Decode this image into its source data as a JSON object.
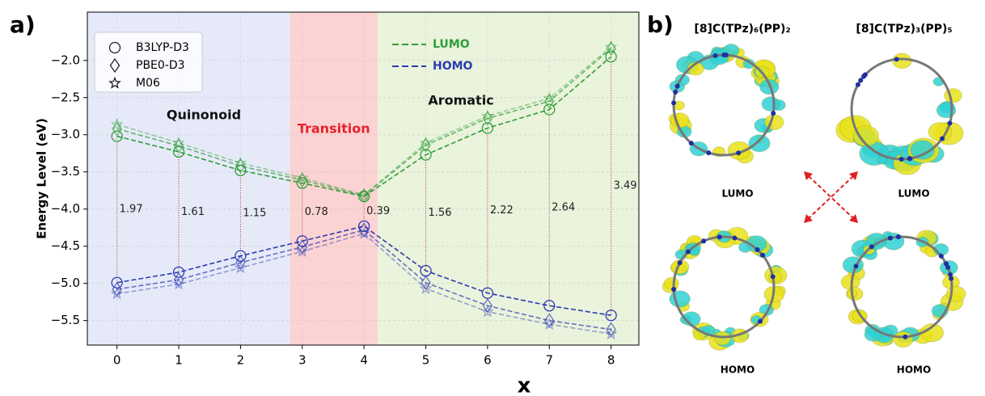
{
  "panel_labels": [
    "a)",
    "b)"
  ],
  "chart_data": {
    "type": "line",
    "x_label": "x",
    "y_label": "Energy Level (eV)",
    "x": [
      0,
      1,
      2,
      3,
      4,
      5,
      6,
      7,
      8
    ],
    "xlim": [
      -0.48,
      8.45
    ],
    "ylim": [
      -5.83,
      -1.35
    ],
    "xticks": [
      0,
      1,
      2,
      3,
      4,
      5,
      6,
      7,
      8
    ],
    "yticks": [
      {
        "value": -5.5,
        "label": "−5.5"
      },
      {
        "value": -5.0,
        "label": "−5.0"
      },
      {
        "value": -4.5,
        "label": "−4.5"
      },
      {
        "value": -4.0,
        "label": "−4.0"
      },
      {
        "value": -3.5,
        "label": "−3.5"
      },
      {
        "value": -3.0,
        "label": "−3.0"
      },
      {
        "value": -2.5,
        "label": "−2.5"
      },
      {
        "value": -2.0,
        "label": "−2.0"
      }
    ],
    "grid": true,
    "regions": [
      {
        "label": "Quinonoid",
        "range": [
          -0.48,
          2.8
        ],
        "color": "#e6eaf8",
        "label_color": "#111111"
      },
      {
        "label": "Transition",
        "range": [
          2.8,
          4.22
        ],
        "color": "#fbd3d3",
        "label_color": "#e8202a"
      },
      {
        "label": "Aromatic",
        "range": [
          4.22,
          8.45
        ],
        "color": "#eaf3dc",
        "label_color": "#111111"
      }
    ],
    "orbitals": [
      {
        "name": "LUMO",
        "color": "#2f9e3a"
      },
      {
        "name": "HOMO",
        "color": "#2b3bb0"
      }
    ],
    "series": [
      {
        "name": "B3LYP-D3",
        "marker": "circle",
        "opacity": 1.0,
        "lumo": [
          -3.02,
          -3.23,
          -3.48,
          -3.65,
          -3.83,
          -3.27,
          -2.91,
          -2.66,
          -1.95
        ],
        "homo": [
          -4.99,
          -4.85,
          -4.63,
          -4.43,
          -4.23,
          -4.83,
          -5.13,
          -5.3,
          -5.43
        ]
      },
      {
        "name": "PBE0-D3",
        "marker": "diamond",
        "opacity": 0.7,
        "lumo": [
          -2.92,
          -3.15,
          -3.42,
          -3.61,
          -3.82,
          -3.14,
          -2.78,
          -2.55,
          -1.84
        ],
        "homo": [
          -5.08,
          -4.95,
          -4.72,
          -4.51,
          -4.28,
          -4.99,
          -5.3,
          -5.5,
          -5.62
        ]
      },
      {
        "name": "M06",
        "marker": "star",
        "opacity": 0.45,
        "lumo": [
          -2.86,
          -3.11,
          -3.38,
          -3.58,
          -3.81,
          -3.11,
          -2.75,
          -2.51,
          -1.82
        ],
        "homo": [
          -5.14,
          -5.01,
          -4.79,
          -4.57,
          -4.33,
          -5.07,
          -5.38,
          -5.55,
          -5.68
        ]
      }
    ],
    "gap_labels": [
      1.97,
      1.61,
      1.15,
      0.78,
      0.39,
      1.56,
      2.22,
      2.64,
      3.49
    ]
  },
  "panel_b": {
    "titles": [
      "[8]C(TPz)₆(PP)₂",
      "[8]C(TPz)₃(PP)₅"
    ],
    "orbital_labels": [
      "LUMO",
      "LUMO",
      "HOMO",
      "HOMO"
    ]
  }
}
